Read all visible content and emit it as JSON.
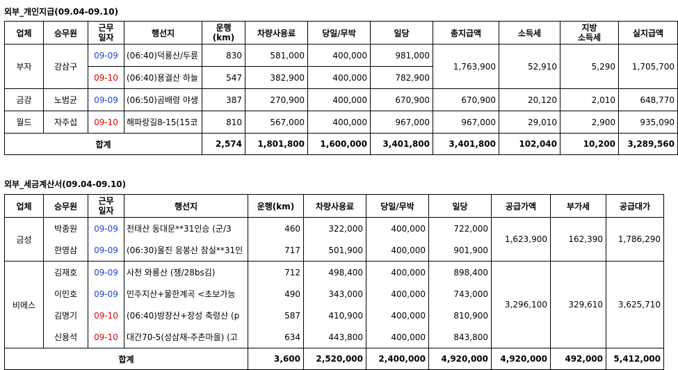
{
  "personal": {
    "title": "외부_개인지급(09.04-09.10)",
    "headers": [
      "업체",
      "승무원",
      "근무\n일자",
      "행선지",
      "운행\n(km)",
      "차량사용료",
      "당일/무박",
      "일당",
      "총지급액",
      "소득세",
      "지방\n소득세",
      "실지급액"
    ],
    "groups": [
      {
        "company": "부자",
        "crew": "강삼구",
        "rows": [
          {
            "date": "09-09",
            "date_color": "blue",
            "dest": "(06:40)덕룡산/두륜",
            "km": "830",
            "fee": "581,000",
            "trip": "400,000",
            "daily": "981,000"
          },
          {
            "date": "09-10",
            "date_color": "red",
            "dest": "(06:40)용궐산 하늘",
            "km": "547",
            "fee": "382,900",
            "trip": "400,000",
            "daily": "782,900"
          }
        ],
        "total_pay": "1,763,900",
        "income_tax": "52,910",
        "local_tax": "5,290",
        "net_pay": "1,705,700"
      },
      {
        "company": "금강",
        "crew": "노범균",
        "rows": [
          {
            "date": "09-09",
            "date_color": "blue",
            "dest": "(06:50)곰배령 야생",
            "km": "387",
            "fee": "270,900",
            "trip": "400,000",
            "daily": "670,900"
          }
        ],
        "total_pay": "670,900",
        "income_tax": "20,120",
        "local_tax": "2,010",
        "net_pay": "648,770"
      },
      {
        "company": "월드",
        "crew": "자주섭",
        "rows": [
          {
            "date": "09-10",
            "date_color": "red",
            "dest": "해파랑길8-15(15코",
            "km": "810",
            "fee": "567,000",
            "trip": "400,000",
            "daily": "967,000"
          }
        ],
        "total_pay": "967,000",
        "income_tax": "29,010",
        "local_tax": "2,900",
        "net_pay": "935,090"
      }
    ],
    "total": {
      "label": "합계",
      "km": "2,574",
      "fee": "1,801,800",
      "trip": "1,600,000",
      "daily": "3,401,800",
      "total_pay": "3,401,800",
      "income_tax": "102,040",
      "local_tax": "10,200",
      "net_pay": "3,289,560"
    }
  },
  "invoice": {
    "title": "외부_세금계산서(09.04-09.10)",
    "headers": [
      "업체",
      "승무원",
      "근무\n일자",
      "행선지",
      "운행(km)",
      "차량사용료",
      "당일/무박",
      "일당",
      "공급가액",
      "부가세",
      "공급대가"
    ],
    "groups": [
      {
        "company": "금성",
        "rows": [
          {
            "crew": "박종원",
            "date": "09-09",
            "date_color": "blue",
            "dest": "천태산 동대문**31인승 (군/3",
            "km": "460",
            "fee": "322,000",
            "trip": "400,000",
            "daily": "722,000"
          },
          {
            "crew": "한영삼",
            "date": "09-09",
            "date_color": "blue",
            "dest": "(06:30)울진 응봉산 잠실**31인",
            "km": "717",
            "fee": "501,900",
            "trip": "400,000",
            "daily": "901,900"
          }
        ],
        "supply": "1,623,900",
        "vat": "162,390",
        "supply_total": "1,786,290"
      },
      {
        "company": "비에스",
        "rows": [
          {
            "crew": "김재호",
            "date": "09-09",
            "date_color": "blue",
            "dest": "사천 와룡산 (쟁/28bs김)",
            "km": "712",
            "fee": "498,400",
            "trip": "400,000",
            "daily": "898,400"
          },
          {
            "crew": "이민호",
            "date": "09-09",
            "date_color": "blue",
            "dest": "민주지산+물한계곡 <초보가능",
            "km": "490",
            "fee": "343,000",
            "trip": "400,000",
            "daily": "743,000"
          },
          {
            "crew": "김명기",
            "date": "09-10",
            "date_color": "red",
            "dest": "(06:40)방장산+장성 축령산 (p",
            "km": "587",
            "fee": "410,900",
            "trip": "400,000",
            "daily": "810,900"
          },
          {
            "crew": "신용석",
            "date": "09-10",
            "date_color": "red",
            "dest": "대간70-5(성삼재-주촌마을) (고",
            "km": "634",
            "fee": "443,800",
            "trip": "400,000",
            "daily": "843,800"
          }
        ],
        "supply": "3,296,100",
        "vat": "329,610",
        "supply_total": "3,625,710"
      }
    ],
    "total": {
      "label": "합계",
      "km": "3,600",
      "fee": "2,520,000",
      "trip": "2,400,000",
      "daily": "4,920,000",
      "supply": "4,920,000",
      "vat": "492,000",
      "supply_total": "5,412,000"
    }
  }
}
